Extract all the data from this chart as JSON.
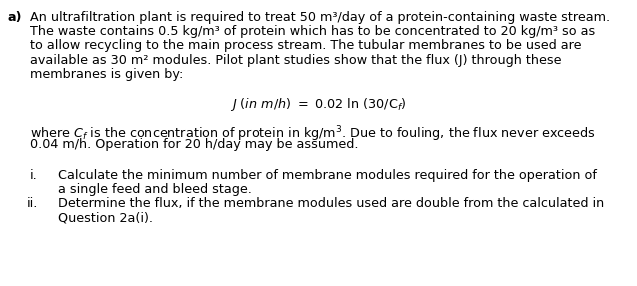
{
  "bg_color": "#ffffff",
  "label_a": "a)",
  "para1_line1": "An ultrafiltration plant is required to treat 50 m³/day of a protein-containing waste stream.",
  "para1_line2": "The waste contains 0.5 kg/m³ of protein which has to be concentrated to 20 kg/m³ so as",
  "para1_line3": "to allow recycling to the main process stream. The tubular membranes to be used are",
  "para1_line4": "available as 30 m² modules. Pilot plant studies show that the flux (J) through these",
  "para1_line5": "membranes is given by:",
  "para2_line1": "where Cₑ is the concentration of protein in kg/m³. Due to fouling, the flux never exceeds",
  "para2_line2": "0.04 m/h. Operation for 20 h/day may be assumed.",
  "item_i_label": "i.",
  "item_i_line1": "Calculate the minimum number of membrane modules required for the operation of",
  "item_i_line2": "a single feed and bleed stage.",
  "item_ii_label": "ii.",
  "item_ii_line1": "Determine the flux, if the membrane modules used are double from the calculated in",
  "item_ii_line2": "Question 2a(i).",
  "font_size": 9.2,
  "font_family": "DejaVu Sans"
}
